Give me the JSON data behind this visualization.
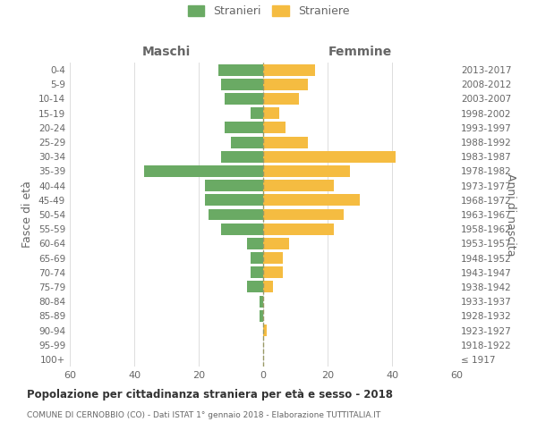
{
  "age_groups": [
    "100+",
    "95-99",
    "90-94",
    "85-89",
    "80-84",
    "75-79",
    "70-74",
    "65-69",
    "60-64",
    "55-59",
    "50-54",
    "45-49",
    "40-44",
    "35-39",
    "30-34",
    "25-29",
    "20-24",
    "15-19",
    "10-14",
    "5-9",
    "0-4"
  ],
  "birth_years": [
    "≤ 1917",
    "1918-1922",
    "1923-1927",
    "1928-1932",
    "1933-1937",
    "1938-1942",
    "1943-1947",
    "1948-1952",
    "1953-1957",
    "1958-1962",
    "1963-1967",
    "1968-1972",
    "1973-1977",
    "1978-1982",
    "1983-1987",
    "1988-1992",
    "1993-1997",
    "1998-2002",
    "2003-2007",
    "2008-2012",
    "2013-2017"
  ],
  "males": [
    0,
    0,
    0,
    1,
    1,
    5,
    4,
    4,
    5,
    13,
    17,
    18,
    18,
    37,
    13,
    10,
    12,
    4,
    12,
    13,
    14
  ],
  "females": [
    0,
    0,
    1,
    0,
    0,
    3,
    6,
    6,
    8,
    22,
    25,
    30,
    22,
    27,
    41,
    14,
    7,
    5,
    11,
    14,
    16
  ],
  "male_color": "#6aaa64",
  "female_color": "#f5bc41",
  "bar_height": 0.8,
  "title": "Popolazione per cittadinanza straniera per età e sesso - 2018",
  "subtitle": "COMUNE DI CERNOBBIO (CO) - Dati ISTAT 1° gennaio 2018 - Elaborazione TUTTITALIA.IT",
  "xlabel_left": "Maschi",
  "xlabel_right": "Femmine",
  "ylabel_left": "Fasce di età",
  "ylabel_right": "Anni di nascita",
  "legend_male": "Stranieri",
  "legend_female": "Straniere",
  "xlim": 60,
  "bg_color": "#ffffff",
  "grid_color": "#dddddd",
  "label_color": "#666666"
}
